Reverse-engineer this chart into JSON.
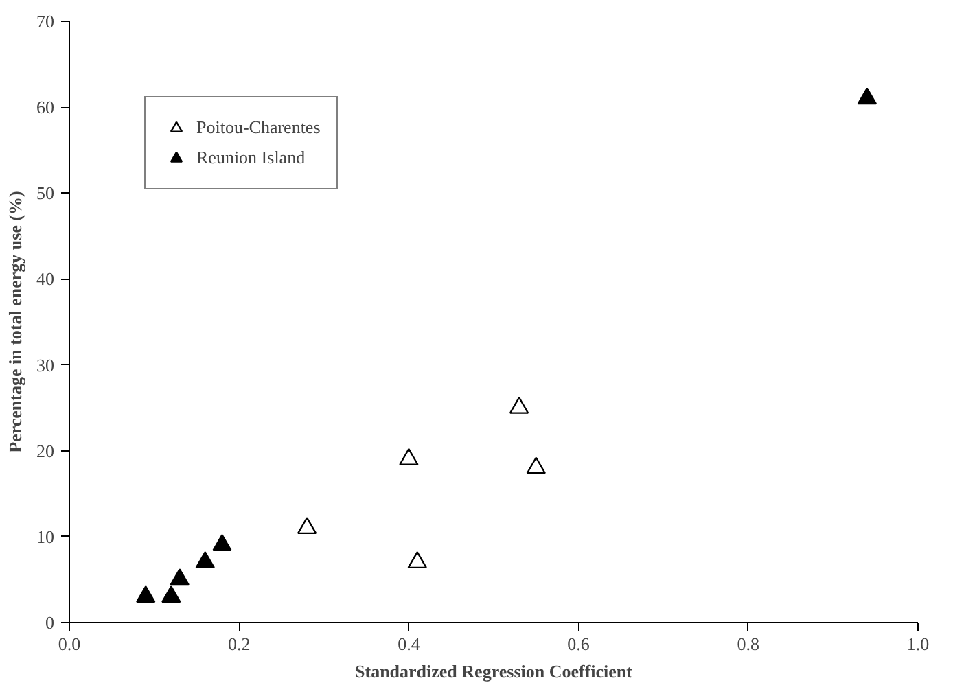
{
  "chart_data": {
    "type": "scatter",
    "xlabel": "Standardized Regression Coefficient",
    "ylabel": "Percentage in total energy use (%)",
    "xlim": [
      0,
      1
    ],
    "ylim": [
      0,
      70
    ],
    "xticks": [
      {
        "value": 0,
        "label": "0.0"
      },
      0.2,
      0.4,
      0.6,
      0.8,
      {
        "value": 1,
        "label": "1.0"
      }
    ],
    "yticks": [
      0,
      10,
      20,
      30,
      40,
      50,
      60,
      70
    ],
    "grid": false,
    "legend": "top left",
    "marker": "triangle",
    "series": [
      {
        "name": "Poitou-Charentes",
        "color": "#ffffff",
        "x": [
          0.28,
          0.4,
          0.41,
          0.53,
          0.55
        ],
        "values": [
          11,
          19,
          7,
          25,
          18
        ]
      },
      {
        "name": "Reunion Island",
        "color": "#000000",
        "x": [
          0.09,
          0.12,
          0.13,
          0.16,
          0.18,
          0.94
        ],
        "values": [
          3,
          3,
          5,
          7,
          9,
          61
        ]
      }
    ]
  }
}
